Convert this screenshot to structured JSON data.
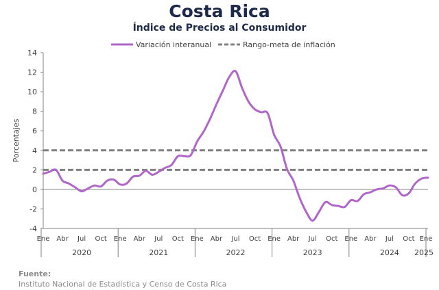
{
  "chart_data": {
    "type": "line",
    "title": "Costa Rica",
    "subtitle": "Índice de Precios al Consumidor",
    "ylabel": "Porcentajes",
    "ylim": [
      -4,
      14
    ],
    "yticks": [
      -4,
      -2,
      0,
      2,
      4,
      6,
      8,
      10,
      12,
      14
    ],
    "x_start": "2020-01",
    "x_end": "2025-01",
    "month_ticks": [
      "Ene",
      "Abr",
      "Jul",
      "Oct"
    ],
    "last_tick": "Ene",
    "years": [
      "2020",
      "2021",
      "2022",
      "2023",
      "2024",
      "2025"
    ],
    "legend_position": "top",
    "series": [
      {
        "name": "Variación interanual",
        "color": "#b066c8",
        "style": "solid",
        "x": [
          "2020-01",
          "2020-02",
          "2020-03",
          "2020-04",
          "2020-05",
          "2020-06",
          "2020-07",
          "2020-08",
          "2020-09",
          "2020-10",
          "2020-11",
          "2020-12",
          "2021-01",
          "2021-02",
          "2021-03",
          "2021-04",
          "2021-05",
          "2021-06",
          "2021-07",
          "2021-08",
          "2021-09",
          "2021-10",
          "2021-11",
          "2021-12",
          "2022-01",
          "2022-02",
          "2022-03",
          "2022-04",
          "2022-05",
          "2022-06",
          "2022-07",
          "2022-08",
          "2022-09",
          "2022-10",
          "2022-11",
          "2022-12",
          "2023-01",
          "2023-02",
          "2023-03",
          "2023-04",
          "2023-05",
          "2023-06",
          "2023-07",
          "2023-08",
          "2023-09",
          "2023-10",
          "2023-11",
          "2023-12",
          "2024-01",
          "2024-02",
          "2024-03",
          "2024-04",
          "2024-05",
          "2024-06",
          "2024-07",
          "2024-08",
          "2024-09",
          "2024-10",
          "2024-11",
          "2024-12",
          "2025-01"
        ],
        "values": [
          1.6,
          1.8,
          2.0,
          0.9,
          0.6,
          0.2,
          -0.2,
          0.1,
          0.4,
          0.3,
          0.9,
          1.0,
          0.5,
          0.6,
          1.3,
          1.4,
          1.9,
          1.5,
          1.8,
          2.2,
          2.5,
          3.4,
          3.4,
          3.5,
          4.9,
          5.9,
          7.2,
          8.7,
          10.1,
          11.5,
          12.1,
          10.4,
          9.0,
          8.2,
          7.9,
          7.8,
          5.6,
          4.4,
          2.1,
          0.9,
          -0.9,
          -2.3,
          -3.2,
          -2.3,
          -1.3,
          -1.6,
          -1.7,
          -1.8,
          -1.1,
          -1.2,
          -0.5,
          -0.3,
          0.0,
          0.1,
          0.4,
          0.2,
          -0.6,
          -0.4,
          0.6,
          1.1,
          1.2
        ]
      },
      {
        "name": "Rango-meta de inflación",
        "color": "#808080",
        "style": "dashed",
        "lines": [
          2,
          4
        ]
      }
    ]
  },
  "source": {
    "label": "Fuente:",
    "text": "Instituto Nacional de Estadística y Censo de Costa Rica"
  }
}
